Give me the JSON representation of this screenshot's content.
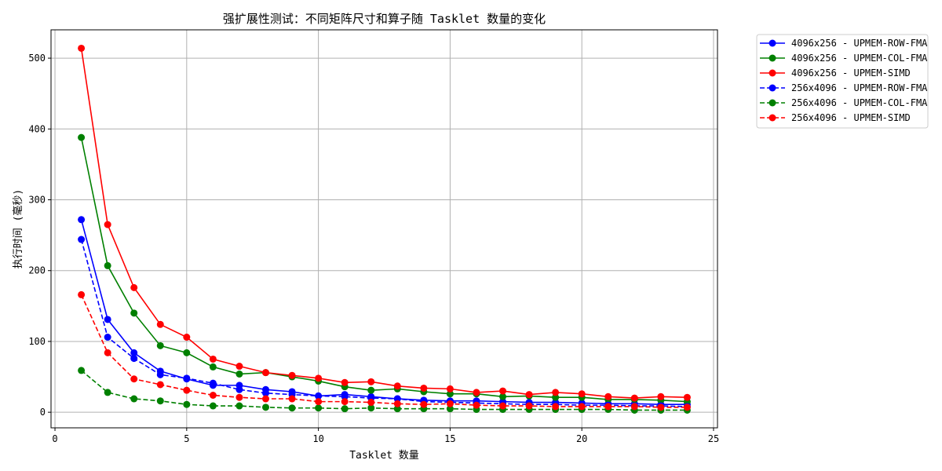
{
  "chart_data": {
    "type": "line",
    "title": "强扩展性测试：不同矩阵尺寸和算子随 Tasklet 数量的变化",
    "xlabel": "Tasklet 数量",
    "ylabel": "执行时间 (毫秒)",
    "xlim": [
      -0.15,
      25.15
    ],
    "ylim": [
      -22,
      540
    ],
    "xticks": [
      0,
      5,
      10,
      15,
      20,
      25
    ],
    "yticks": [
      0,
      100,
      200,
      300,
      400,
      500
    ],
    "grid": true,
    "legend_position": "outside-top-right",
    "x": [
      1,
      2,
      3,
      4,
      5,
      6,
      7,
      8,
      9,
      10,
      11,
      12,
      13,
      14,
      15,
      16,
      17,
      18,
      19,
      20,
      21,
      22,
      23,
      24
    ],
    "series": [
      {
        "name": "4096x256 - UPMEM-ROW-FMA",
        "color": "#0000ff",
        "dash": "solid",
        "values": [
          272,
          131,
          84,
          58,
          47,
          38,
          38,
          32,
          29,
          23,
          25,
          22,
          19,
          17,
          16,
          16,
          15,
          14,
          14,
          13,
          12,
          12,
          11,
          11
        ]
      },
      {
        "name": "4096x256 - UPMEM-COL-FMA",
        "color": "#008000",
        "dash": "solid",
        "values": [
          388,
          207,
          140,
          94,
          84,
          64,
          54,
          56,
          50,
          44,
          36,
          31,
          33,
          29,
          26,
          26,
          22,
          23,
          21,
          21,
          18,
          18,
          17,
          15
        ]
      },
      {
        "name": "4096x256 - UPMEM-SIMD",
        "color": "#ff0000",
        "dash": "solid",
        "values": [
          514,
          265,
          176,
          124,
          106,
          75,
          65,
          56,
          52,
          48,
          42,
          43,
          37,
          34,
          33,
          28,
          30,
          25,
          28,
          26,
          22,
          20,
          22,
          21
        ]
      },
      {
        "name": "256x4096 - UPMEM-ROW-FMA",
        "color": "#0000ff",
        "dash": "dashed",
        "values": [
          244,
          106,
          76,
          53,
          48,
          41,
          32,
          27,
          25,
          23,
          22,
          20,
          19,
          15,
          14,
          13,
          12,
          11,
          11,
          10,
          10,
          9,
          9,
          8
        ]
      },
      {
        "name": "256x4096 - UPMEM-COL-FMA",
        "color": "#008000",
        "dash": "dashed",
        "values": [
          59,
          28,
          19,
          16,
          11,
          9,
          9,
          7,
          6,
          6,
          5,
          6,
          5,
          5,
          5,
          4,
          4,
          4,
          4,
          4,
          4,
          3,
          3,
          3
        ]
      },
      {
        "name": "256x4096 - UPMEM-SIMD",
        "color": "#ff0000",
        "dash": "dashed",
        "values": [
          166,
          84,
          47,
          39,
          31,
          24,
          21,
          19,
          19,
          15,
          15,
          14,
          12,
          11,
          12,
          10,
          9,
          9,
          8,
          8,
          8,
          8,
          7,
          7
        ]
      }
    ]
  }
}
